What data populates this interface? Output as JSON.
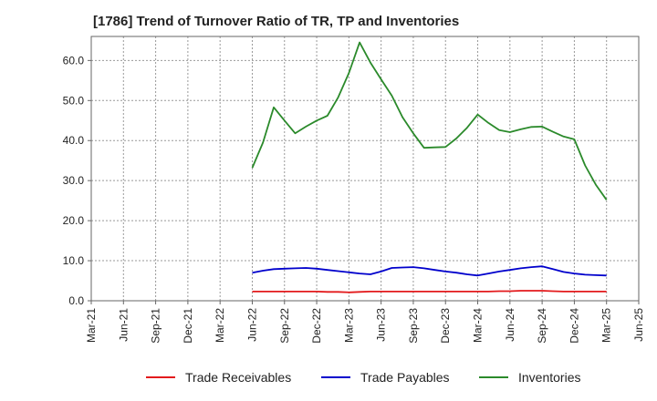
{
  "title": "[1786]  Trend of Turnover Ratio of TR, TP and Inventories",
  "chart_data": {
    "type": "line",
    "x_ticks": [
      "Mar-21",
      "Jun-21",
      "Sep-21",
      "Dec-21",
      "Mar-22",
      "Jun-22",
      "Sep-22",
      "Dec-22",
      "Mar-23",
      "Jun-23",
      "Sep-23",
      "Dec-23",
      "Mar-24",
      "Jun-24",
      "Sep-24",
      "Dec-24",
      "Mar-25",
      "Jun-25"
    ],
    "y_ticks": [
      "0.0",
      "10.0",
      "20.0",
      "30.0",
      "40.0",
      "50.0",
      "60.0"
    ],
    "ylim": [
      0,
      66
    ],
    "grid": true,
    "legend_position": "bottom",
    "x": [
      "Jun-22",
      "Jul-22",
      "Aug-22",
      "Sep-22",
      "Oct-22",
      "Nov-22",
      "Dec-22",
      "Jan-23",
      "Feb-23",
      "Mar-23",
      "Apr-23",
      "May-23",
      "Jun-23",
      "Jul-23",
      "Aug-23",
      "Sep-23",
      "Oct-23",
      "Nov-23",
      "Dec-23",
      "Jan-24",
      "Feb-24",
      "Mar-24",
      "Apr-24",
      "May-24",
      "Jun-24",
      "Jul-24",
      "Aug-24",
      "Sep-24",
      "Oct-24",
      "Nov-24",
      "Dec-24",
      "Jan-25",
      "Feb-25",
      "Mar-25"
    ],
    "series": [
      {
        "name": "Trade Receivables",
        "color": "#e31a1c",
        "values": [
          2.3,
          2.3,
          2.3,
          2.3,
          2.3,
          2.3,
          2.3,
          2.2,
          2.2,
          2.1,
          2.2,
          2.3,
          2.3,
          2.3,
          2.3,
          2.3,
          2.3,
          2.3,
          2.3,
          2.3,
          2.3,
          2.3,
          2.3,
          2.4,
          2.4,
          2.5,
          2.5,
          2.5,
          2.4,
          2.3,
          2.3,
          2.3,
          2.3,
          2.3
        ]
      },
      {
        "name": "Trade Payables",
        "color": "#0000cc",
        "values": [
          7.0,
          7.5,
          7.9,
          8.0,
          8.1,
          8.2,
          8.0,
          7.7,
          7.4,
          7.1,
          6.8,
          6.6,
          7.3,
          8.2,
          8.3,
          8.4,
          8.1,
          7.7,
          7.3,
          7.0,
          6.6,
          6.3,
          6.8,
          7.3,
          7.7,
          8.1,
          8.4,
          8.6,
          7.9,
          7.2,
          6.8,
          6.5,
          6.4,
          6.3
        ]
      },
      {
        "name": "Inventories",
        "color": "#2b8a2b",
        "values": [
          33.2,
          39.5,
          48.3,
          45.0,
          41.8,
          43.5,
          45.0,
          46.2,
          50.8,
          56.9,
          64.5,
          59.5,
          55.3,
          51.2,
          45.8,
          41.8,
          38.2,
          38.3,
          38.4,
          40.5,
          43.2,
          46.5,
          44.4,
          42.6,
          42.1,
          42.8,
          43.4,
          43.5,
          42.2,
          41.0,
          40.3,
          33.8,
          29.0,
          25.2
        ]
      }
    ]
  }
}
